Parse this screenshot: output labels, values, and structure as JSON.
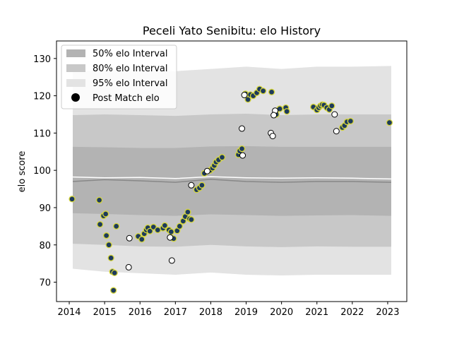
{
  "chart_data": {
    "type": "scatter",
    "title": "Peceli Yato Senibitu: elo History",
    "xlabel": "",
    "ylabel": "elo score",
    "xlim": [
      2013.64,
      2023.54
    ],
    "ylim": [
      64.8,
      134.7
    ],
    "xticks": [
      2014,
      2015,
      2016,
      2017,
      2018,
      2019,
      2020,
      2021,
      2022,
      2023
    ],
    "yticks": [
      70,
      80,
      90,
      100,
      110,
      120,
      130
    ],
    "legend": {
      "placement": "top-left",
      "entries": [
        "50% elo Interval",
        "80% elo Interval",
        "95% elo Interval",
        "Post Match elo"
      ]
    },
    "colors": {
      "band50": "#b3b3b3",
      "band80": "#c8c8c8",
      "band95": "#e3e3e3",
      "mean_line": "#888888",
      "median_line": "#ffffff",
      "point_fill": "#1d3a5c",
      "point_edge": "#d6d63a",
      "hollow_fill": "#ffffff",
      "hollow_edge": "#000000"
    },
    "bands": {
      "x": [
        2014.1,
        2015.0,
        2016.0,
        2017.0,
        2018.0,
        2019.0,
        2020.0,
        2021.0,
        2022.0,
        2023.1
      ],
      "p50_low": [
        88.5,
        88.3,
        88.0,
        87.8,
        88.2,
        88.0,
        87.8,
        87.9,
        88.0,
        87.8
      ],
      "p50_high": [
        106.3,
        106.2,
        106.0,
        106.0,
        106.4,
        106.5,
        106.3,
        106.3,
        106.3,
        106.3
      ],
      "p80_low": [
        80.3,
        80.0,
        79.6,
        79.5,
        80.0,
        79.6,
        79.4,
        79.6,
        79.5,
        79.5
      ],
      "p80_high": [
        114.8,
        115.0,
        114.8,
        114.6,
        115.0,
        115.2,
        114.8,
        115.0,
        115.0,
        115.0
      ],
      "p95_low": [
        73.6,
        72.8,
        72.4,
        72.0,
        72.6,
        72.0,
        71.8,
        72.0,
        72.0,
        72.0
      ],
      "p95_high": [
        126.6,
        126.8,
        127.0,
        126.6,
        127.2,
        127.8,
        127.2,
        127.8,
        127.8,
        128.0
      ],
      "mean": [
        97.0,
        97.5,
        97.2,
        96.8,
        97.6,
        97.0,
        96.8,
        97.0,
        97.0,
        96.8
      ],
      "median": [
        98.2,
        98.0,
        98.1,
        97.8,
        98.3,
        98.0,
        97.9,
        98.0,
        97.9,
        97.7
      ]
    },
    "series": [
      {
        "name": "Post Match elo",
        "x": [
          2014.08,
          2014.85,
          2014.87,
          2014.97,
          2015.03,
          2015.05,
          2015.12,
          2015.18,
          2015.22,
          2015.25,
          2015.28,
          2015.33,
          2015.95,
          2016.05,
          2016.12,
          2016.18,
          2016.22,
          2016.28,
          2016.38,
          2016.5,
          2016.65,
          2016.7,
          2016.82,
          2016.88,
          2016.95,
          2017.05,
          2017.12,
          2017.22,
          2017.28,
          2017.35,
          2017.4,
          2017.45,
          2017.6,
          2017.68,
          2017.75,
          2017.82,
          2017.98,
          2018.05,
          2018.1,
          2018.15,
          2018.22,
          2018.32,
          2018.78,
          2018.82,
          2018.88,
          2018.98,
          2019.05,
          2019.12,
          2019.2,
          2019.3,
          2019.38,
          2019.48,
          2019.72,
          2019.85,
          2019.95,
          2020.12,
          2020.15,
          2020.9,
          2021.0,
          2021.05,
          2021.1,
          2021.15,
          2021.2,
          2021.28,
          2021.35,
          2021.42,
          2021.72,
          2021.78,
          2021.85,
          2021.95,
          2023.05
        ],
        "y": [
          92.3,
          92.0,
          85.5,
          87.8,
          88.3,
          82.5,
          80.0,
          76.5,
          72.8,
          67.8,
          72.5,
          85.0,
          82.3,
          81.5,
          83.0,
          84.0,
          84.6,
          83.7,
          84.8,
          84.0,
          84.5,
          85.2,
          84.0,
          83.5,
          81.7,
          83.8,
          85.0,
          86.4,
          87.6,
          88.8,
          87.0,
          86.8,
          94.8,
          95.3,
          96.0,
          99.2,
          100.0,
          100.6,
          101.3,
          102.2,
          102.8,
          103.5,
          104.2,
          105.2,
          105.8,
          120.5,
          119.0,
          120.3,
          120.0,
          120.8,
          121.8,
          121.3,
          121.0,
          115.0,
          116.5,
          116.8,
          115.8,
          117.0,
          116.2,
          116.8,
          117.3,
          117.6,
          117.5,
          116.8,
          116.3,
          117.3,
          111.5,
          112.0,
          113.0,
          113.2,
          112.8
        ]
      },
      {
        "name": "",
        "x": [
          2015.7,
          2015.68,
          2016.85,
          2016.9,
          2017.45,
          2017.9,
          2018.9,
          2018.88,
          2019.82,
          2019.78,
          2019.7,
          2019.75,
          2021.5,
          2021.55,
          2018.95
        ],
        "y": [
          81.8,
          74.0,
          82.0,
          75.8,
          96.0,
          99.8,
          104.0,
          111.2,
          116.0,
          114.8,
          110.0,
          109.2,
          115.0,
          110.5,
          120.2
        ]
      }
    ]
  }
}
